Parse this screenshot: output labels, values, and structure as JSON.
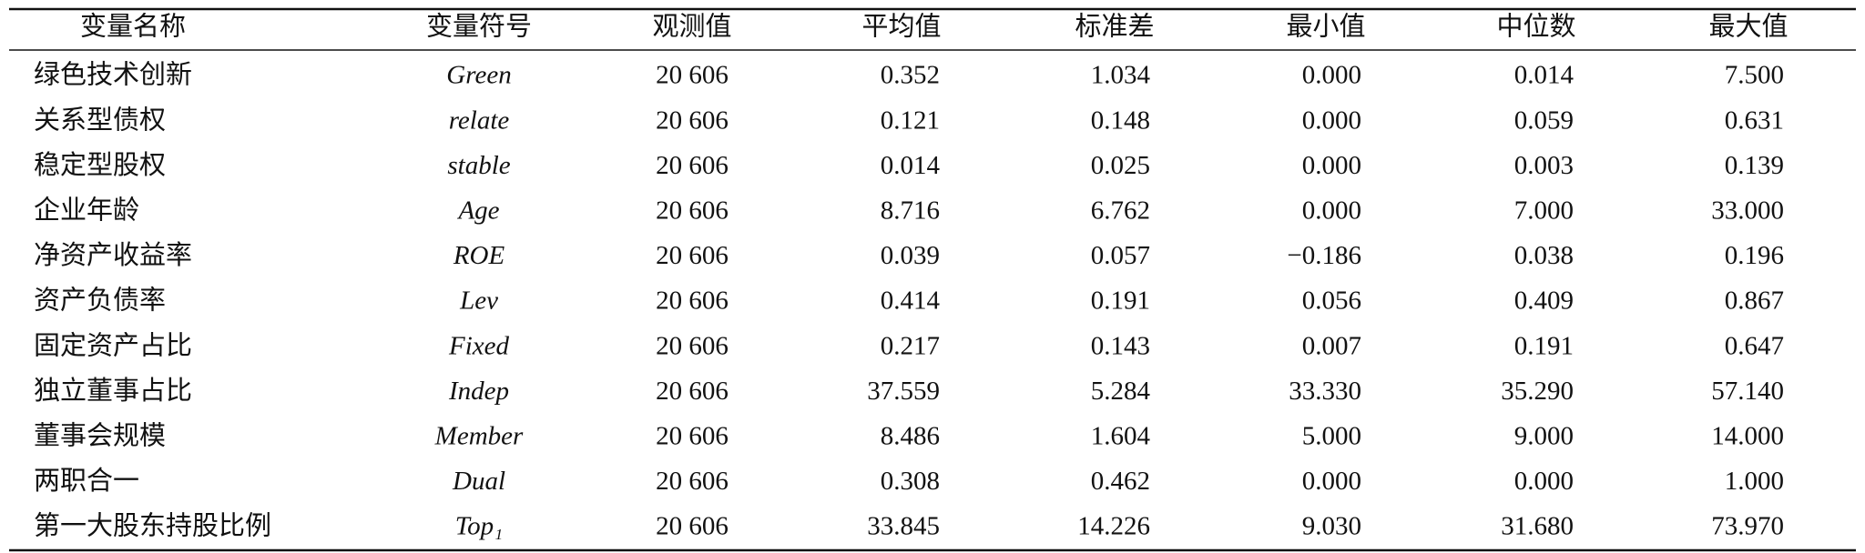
{
  "table": {
    "header": [
      "变量名称",
      "变量符号",
      "观测值",
      "平均值",
      "标准差",
      "最小值",
      "中位数",
      "最大值"
    ],
    "rows": [
      [
        "绿色技术创新",
        "Green",
        "20 606",
        "0.352",
        "1.034",
        "0.000",
        "0.014",
        "7.500"
      ],
      [
        "关系型债权",
        "relate",
        "20 606",
        "0.121",
        "0.148",
        "0.000",
        "0.059",
        "0.631"
      ],
      [
        "稳定型股权",
        "stable",
        "20 606",
        "0.014",
        "0.025",
        "0.000",
        "0.003",
        "0.139"
      ],
      [
        "企业年龄",
        "Age",
        "20 606",
        "8.716",
        "6.762",
        "0.000",
        "7.000",
        "33.000"
      ],
      [
        "净资产收益率",
        "ROE",
        "20 606",
        "0.039",
        "0.057",
        "−0.186",
        "0.038",
        "0.196"
      ],
      [
        "资产负债率",
        "Lev",
        "20 606",
        "0.414",
        "0.191",
        "0.056",
        "0.409",
        "0.867"
      ],
      [
        "固定资产占比",
        "Fixed",
        "20 606",
        "0.217",
        "0.143",
        "0.007",
        "0.191",
        "0.647"
      ],
      [
        "独立董事占比",
        "Indep",
        "20 606",
        "37.559",
        "5.284",
        "33.330",
        "35.290",
        "57.140"
      ],
      [
        "董事会规模",
        "Member",
        "20 606",
        "8.486",
        "1.604",
        "5.000",
        "9.000",
        "14.000"
      ],
      [
        "两职合一",
        "Dual",
        "20 606",
        "0.308",
        "0.462",
        "0.000",
        "0.000",
        "1.000"
      ],
      [
        "第一大股东持股比例",
        "Top₁",
        "20 606",
        "33.845",
        "14.226",
        "9.030",
        "31.680",
        "73.970"
      ]
    ]
  }
}
